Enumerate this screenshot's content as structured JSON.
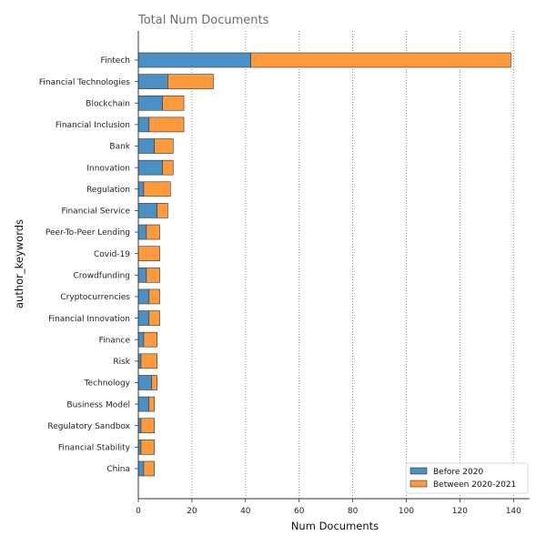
{
  "chart_data": {
    "type": "bar",
    "orientation": "horizontal",
    "stacked": true,
    "title": "Total Num Documents",
    "xlabel": "Num Documents",
    "ylabel": "author_keywords",
    "xlim": [
      0,
      145
    ],
    "xticks": [
      0,
      20,
      40,
      60,
      80,
      100,
      120,
      140
    ],
    "grid": "x-dotted",
    "legend_position": "bottom-right",
    "categories": [
      "Fintech",
      "Financial Technologies",
      "Blockchain",
      "Financial Inclusion",
      "Bank",
      "Innovation",
      "Regulation",
      "Financial Service",
      "Peer-To-Peer Lending",
      "Covid-19",
      "Crowdfunding",
      "Cryptocurrencies",
      "Financial Innovation",
      "Finance",
      "Risk",
      "Technology",
      "Business Model",
      "Regulatory Sandbox",
      "Financial Stability",
      "China"
    ],
    "series": [
      {
        "name": "Before 2020",
        "color": "#4a90c4",
        "values": [
          42,
          11,
          9,
          4,
          6,
          9,
          2,
          7,
          3,
          0,
          3,
          4,
          4,
          2,
          1,
          5,
          4,
          1,
          1,
          2
        ]
      },
      {
        "name": "Between 2020-2021",
        "color": "#ff9a3c",
        "values": [
          97,
          17,
          8,
          13,
          7,
          4,
          10,
          4,
          5,
          8,
          5,
          4,
          4,
          5,
          6,
          2,
          2,
          5,
          5,
          4
        ]
      }
    ]
  }
}
